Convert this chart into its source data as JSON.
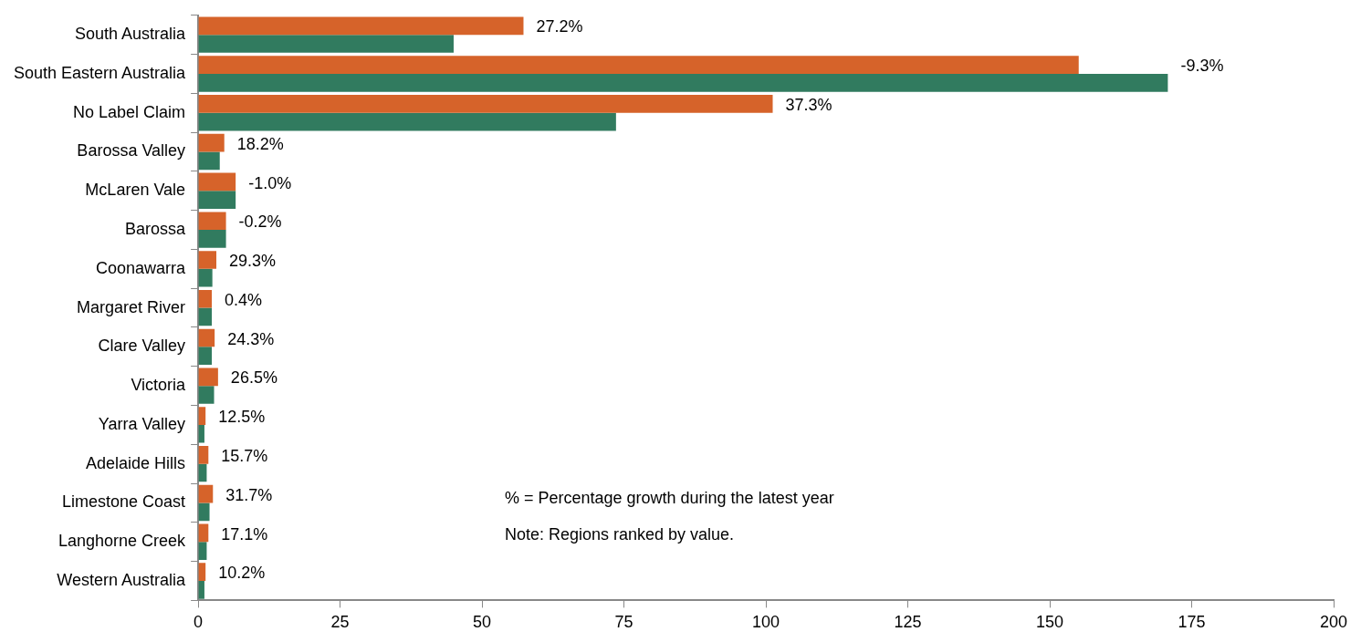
{
  "chart_data": {
    "type": "bar",
    "orientation": "horizontal",
    "categories": [
      "South Australia",
      "South Eastern Australia",
      "No Label Claim",
      "Barossa Valley",
      "McLaren Vale",
      "Barossa",
      "Coonawarra",
      "Margaret River",
      "Clare Valley",
      "Victoria",
      "Yarra Valley",
      "Adelaide Hills",
      "Limestone Coast",
      "Langhorne Creek",
      "Western Australia"
    ],
    "series": [
      {
        "color": "#d6632a",
        "values": [
          57.3,
          155.1,
          101.2,
          4.6,
          6.6,
          4.9,
          3.2,
          2.4,
          2.9,
          3.5,
          1.3,
          1.8,
          2.6,
          1.8,
          1.3
        ]
      },
      {
        "color": "#317b5f",
        "values": [
          45.0,
          170.8,
          73.6,
          3.8,
          6.6,
          4.9,
          2.5,
          2.4,
          2.4,
          2.8,
          1.1,
          1.5,
          2.0,
          1.5,
          1.1
        ]
      }
    ],
    "xlim": [
      0,
      200
    ],
    "xticks": [
      0,
      25,
      50,
      75,
      100,
      125,
      150,
      175,
      200
    ],
    "grid": false,
    "legend": false,
    "annotations": [
      {
        "text": "27.2%",
        "x": 57.3,
        "y": "South Australia"
      },
      {
        "text": "-9.3%",
        "x": 170.8,
        "y": "South Eastern Australia"
      },
      {
        "text": "37.3%",
        "x": 101.2,
        "y": "No Label Claim"
      },
      {
        "text": "18.2%",
        "x": 4.6,
        "y": "Barossa Valley"
      },
      {
        "text": "-1.0%",
        "x": 6.6,
        "y": "McLaren Vale"
      },
      {
        "text": "-0.2%",
        "x": 4.9,
        "y": "Barossa"
      },
      {
        "text": "29.3%",
        "x": 3.2,
        "y": "Coonawarra"
      },
      {
        "text": "0.4%",
        "x": 2.4,
        "y": "Margaret River"
      },
      {
        "text": "24.3%",
        "x": 2.9,
        "y": "Clare Valley"
      },
      {
        "text": "26.5%",
        "x": 3.5,
        "y": "Victoria"
      },
      {
        "text": "12.5%",
        "x": 1.3,
        "y": "Yarra Valley"
      },
      {
        "text": "15.7%",
        "x": 1.8,
        "y": "Adelaide Hills"
      },
      {
        "text": "31.7%",
        "x": 2.6,
        "y": "Limestone Coast"
      },
      {
        "text": "17.1%",
        "x": 1.8,
        "y": "Langhorne Creek"
      },
      {
        "text": "10.2%",
        "x": 1.3,
        "y": "Western Australia"
      },
      "% = Percentage growth during the latest year",
      "Note: Regions ranked by value."
    ]
  }
}
